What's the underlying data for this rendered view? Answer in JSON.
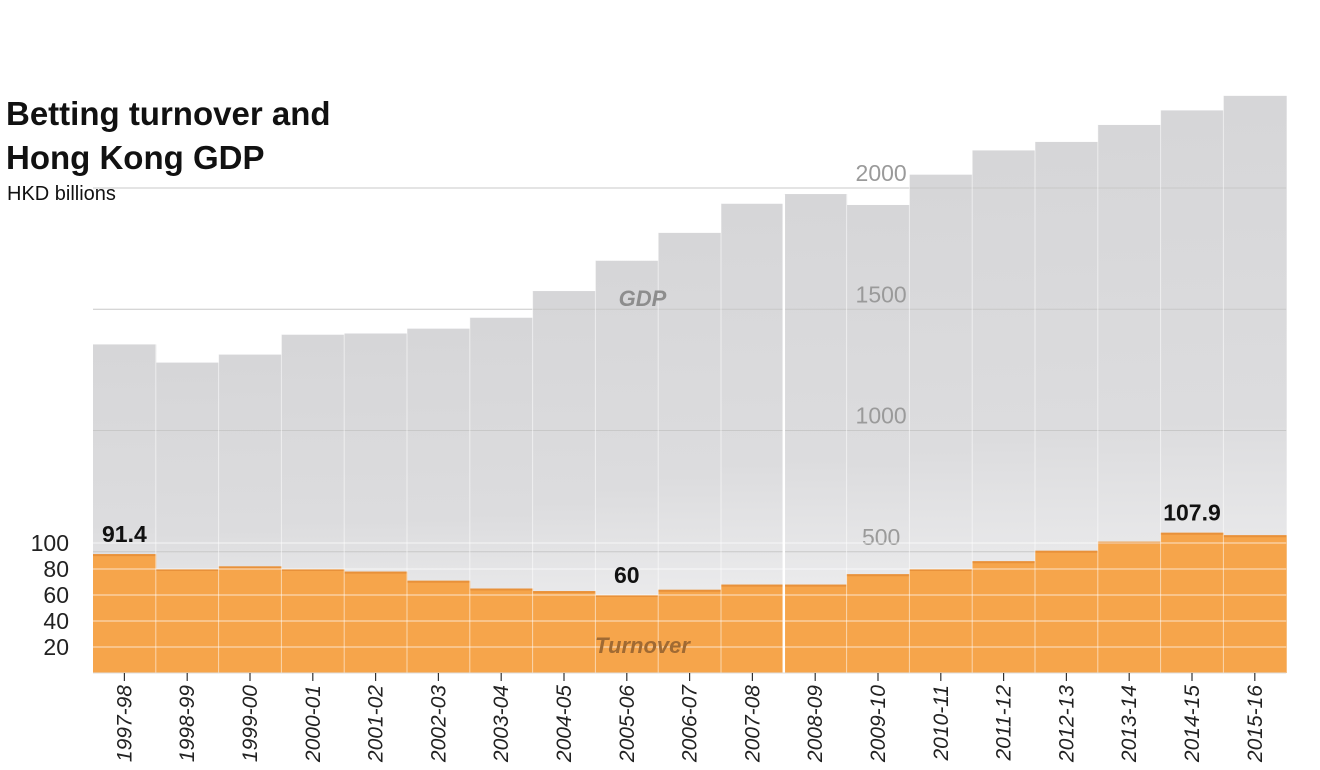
{
  "title_lines": [
    "Betting turnover and",
    "Hong Kong GDP"
  ],
  "subtitle": "HKD billions",
  "colors": {
    "gdp_fill": "#d9d9db",
    "turnover_fill": "#f6a54b",
    "turnover_top_line": "#e8913a",
    "grid": "#c8c8c8",
    "tick_text": "#9a9a9a",
    "gdp_label": "#8d8d8d",
    "turnover_label": "#a06a33"
  },
  "chart_data": [
    {
      "type": "area",
      "name": "GDP",
      "series_label": "GDP",
      "categories": [
        "1997-98",
        "1998-99",
        "1999-00",
        "2000-01",
        "2001-02",
        "2002-03",
        "2003-04",
        "2004-05",
        "2005-06",
        "2006-07",
        "2007-08",
        "2008-09",
        "2009-10",
        "2010-11",
        "2011-12",
        "2012-13",
        "2013-14",
        "2014-15",
        "2015-16"
      ],
      "values": [
        1355,
        1280,
        1313,
        1395,
        1400,
        1420,
        1465,
        1575,
        1700,
        1815,
        1935,
        1975,
        1930,
        2055,
        2155,
        2190,
        2260,
        2320,
        2380
      ],
      "yticks": [
        "500",
        "1000",
        "1500",
        "2000"
      ],
      "ylim": [
        0,
        2400
      ],
      "grid": true
    },
    {
      "type": "bar",
      "name": "Turnover",
      "series_label": "Turnover",
      "categories": [
        "1997-98",
        "1998-99",
        "1999-00",
        "2000-01",
        "2001-02",
        "2002-03",
        "2003-04",
        "2004-05",
        "2005-06",
        "2006-07",
        "2007-08",
        "2008-09",
        "2009-10",
        "2010-11",
        "2011-12",
        "2012-13",
        "2013-14",
        "2014-15",
        "2015-16"
      ],
      "values": [
        91.4,
        80,
        82,
        80,
        78,
        71,
        65,
        63,
        60,
        64,
        68,
        68,
        76,
        80,
        86,
        94,
        101,
        107.9,
        106
      ],
      "yticks": [
        "20",
        "40",
        "60",
        "80",
        "100"
      ],
      "data_labels": [
        {
          "category": "1997-98",
          "text": "91.4"
        },
        {
          "category": "2005-06",
          "text": "60"
        },
        {
          "category": "2014-15",
          "text": "107.9"
        }
      ],
      "grid": true
    }
  ]
}
